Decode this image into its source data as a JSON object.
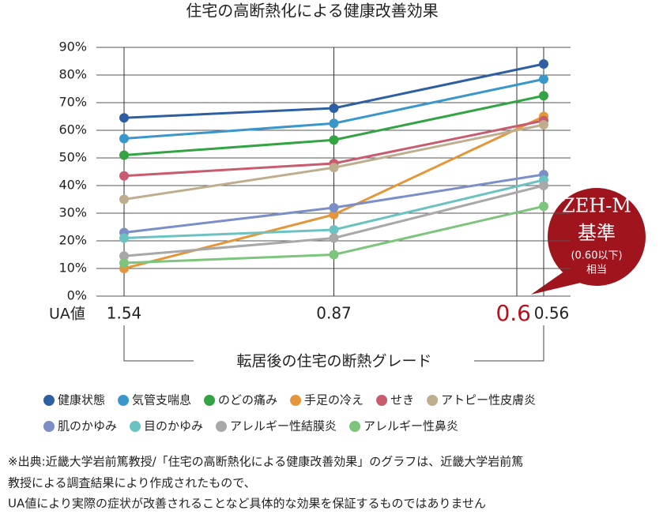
{
  "chart_data": {
    "type": "line",
    "title": "住宅の高断熱化による健康改善効果",
    "x_axis_label": "UA値",
    "categories": [
      "1.54",
      "0.87",
      "0.56"
    ],
    "x_title": "転居後の住宅の断熱グレード",
    "annotation": "0.6",
    "callout": {
      "line1": "ZEH-M",
      "line2": "基準",
      "line3": "(0.60以下)",
      "line4": "相当"
    },
    "ylim": [
      0,
      90
    ],
    "yticks": [
      {
        "value": 0,
        "label": "0%"
      },
      {
        "value": 10,
        "label": "10%"
      },
      {
        "value": 20,
        "label": "20%"
      },
      {
        "value": 30,
        "label": "30%"
      },
      {
        "value": 40,
        "label": "40%"
      },
      {
        "value": 50,
        "label": "50%"
      },
      {
        "value": 60,
        "label": "60%"
      },
      {
        "value": 70,
        "label": "70%"
      },
      {
        "value": 80,
        "label": "80%"
      },
      {
        "value": 90,
        "label": "90%"
      }
    ],
    "grid": true,
    "series": [
      {
        "name": "健康状態",
        "color": "#2e5fa3",
        "values": [
          64.5,
          68,
          84
        ]
      },
      {
        "name": "気管支喘息",
        "color": "#3a97cc",
        "values": [
          57,
          62.5,
          78.5
        ]
      },
      {
        "name": "のどの痛み",
        "color": "#34a343",
        "values": [
          51,
          56.5,
          72.5
        ]
      },
      {
        "name": "手足の冷え",
        "color": "#e5963a",
        "values": [
          10,
          29.5,
          65
        ]
      },
      {
        "name": "せき",
        "color": "#c95b6e",
        "values": [
          43.5,
          48,
          63.5
        ]
      },
      {
        "name": "アトピー性皮膚炎",
        "color": "#bfae8e",
        "values": [
          35,
          46.5,
          62
        ]
      },
      {
        "name": "肌のかゆみ",
        "color": "#7b8ec8",
        "values": [
          23,
          32,
          44
        ]
      },
      {
        "name": "目のかゆみ",
        "color": "#6bc3c1",
        "values": [
          21,
          24,
          42
        ]
      },
      {
        "name": "アレルギー性結膜炎",
        "color": "#a8a8a8",
        "values": [
          14.5,
          21,
          40
        ]
      },
      {
        "name": "アレルギー性鼻炎",
        "color": "#7dc47d",
        "values": [
          12,
          15,
          32.5
        ]
      }
    ],
    "footnote": [
      "※出典:近畿大学岩前篤教授/「住宅の高断熱化による健康改善効果」のグラフは、近畿大学岩前篤",
      "教授による調査結果により作成されたもので、",
      "UA値により実際の症状が改善されることなど具体的な効果を保証するものではありません"
    ]
  }
}
